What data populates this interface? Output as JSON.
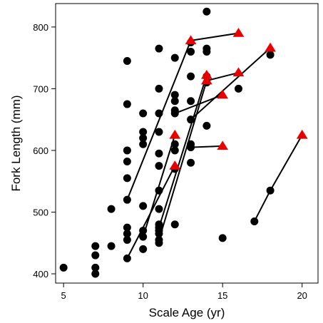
{
  "chart_data": {
    "type": "scatter",
    "title": "",
    "xlabel": "Scale Age (yr)",
    "ylabel": "Fork Length (mm)",
    "xlim": [
      4.5,
      21
    ],
    "ylim": [
      385,
      838
    ],
    "x_ticks": [
      5,
      10,
      15,
      20
    ],
    "y_ticks": [
      400,
      500,
      600,
      700,
      800
    ],
    "grid": false,
    "legend": "none",
    "colors": {
      "circle": "#000000",
      "triangle": "#e60000",
      "line": "#000000",
      "axis": "#000000"
    },
    "series": [
      {
        "marker": "circle",
        "points": [
          [
            5,
            410
          ],
          [
            7,
            445
          ],
          [
            7,
            430
          ],
          [
            7,
            410
          ],
          [
            7,
            400
          ],
          [
            8,
            505
          ],
          [
            8,
            445
          ],
          [
            9,
            745
          ],
          [
            9,
            675
          ],
          [
            9,
            600
          ],
          [
            9,
            582
          ],
          [
            9,
            555
          ],
          [
            9,
            520
          ],
          [
            9,
            475
          ],
          [
            9,
            465
          ],
          [
            9,
            455
          ],
          [
            9,
            425
          ],
          [
            10,
            660
          ],
          [
            10,
            630
          ],
          [
            10,
            620
          ],
          [
            10,
            610
          ],
          [
            10,
            510
          ],
          [
            10,
            470
          ],
          [
            10,
            460
          ],
          [
            10,
            440
          ],
          [
            11,
            765
          ],
          [
            11,
            700
          ],
          [
            11,
            660
          ],
          [
            11,
            630
          ],
          [
            11,
            595
          ],
          [
            11,
            575
          ],
          [
            11,
            535
          ],
          [
            11,
            505
          ],
          [
            11,
            480
          ],
          [
            11,
            475
          ],
          [
            11,
            470
          ],
          [
            11,
            465
          ],
          [
            11,
            455
          ],
          [
            11,
            450
          ],
          [
            12,
            750
          ],
          [
            12,
            690
          ],
          [
            12,
            680
          ],
          [
            12,
            665
          ],
          [
            12,
            660
          ],
          [
            12,
            610
          ],
          [
            12,
            600
          ],
          [
            12,
            570
          ],
          [
            12,
            480
          ],
          [
            13,
            775
          ],
          [
            13,
            760
          ],
          [
            13,
            720
          ],
          [
            13,
            680
          ],
          [
            13,
            650
          ],
          [
            13,
            610
          ],
          [
            13,
            605
          ],
          [
            13,
            580
          ],
          [
            14,
            825
          ],
          [
            14,
            765
          ],
          [
            14,
            760
          ],
          [
            14,
            720
          ],
          [
            14,
            710
          ],
          [
            14,
            640
          ],
          [
            15,
            458
          ],
          [
            16,
            700
          ],
          [
            17,
            485
          ],
          [
            18,
            535
          ],
          [
            18,
            755
          ]
        ]
      },
      {
        "marker": "triangle",
        "points": [
          [
            12,
            625
          ],
          [
            12,
            575
          ],
          [
            13,
            778
          ],
          [
            14,
            722
          ],
          [
            14,
            713
          ],
          [
            15,
            690
          ],
          [
            15,
            607
          ],
          [
            16,
            790
          ],
          [
            16,
            726
          ],
          [
            18,
            766
          ],
          [
            20,
            625
          ]
        ]
      }
    ],
    "segments": [
      [
        [
          9,
          520
        ],
        [
          13,
          778
        ]
      ],
      [
        [
          13,
          778
        ],
        [
          16,
          790
        ]
      ],
      [
        [
          14,
          713
        ],
        [
          16,
          726
        ]
      ],
      [
        [
          13,
          650
        ],
        [
          18,
          766
        ]
      ],
      [
        [
          13,
          605
        ],
        [
          15,
          607
        ]
      ],
      [
        [
          11,
          475
        ],
        [
          14,
          722
        ]
      ],
      [
        [
          11,
          455
        ],
        [
          14,
          713
        ]
      ],
      [
        [
          10,
          460
        ],
        [
          12,
          625
        ]
      ],
      [
        [
          9,
          425
        ],
        [
          12,
          575
        ]
      ],
      [
        [
          12,
          660
        ],
        [
          15,
          690
        ]
      ],
      [
        [
          17,
          485
        ],
        [
          18,
          535
        ]
      ],
      [
        [
          18,
          535
        ],
        [
          20,
          625
        ]
      ]
    ]
  }
}
